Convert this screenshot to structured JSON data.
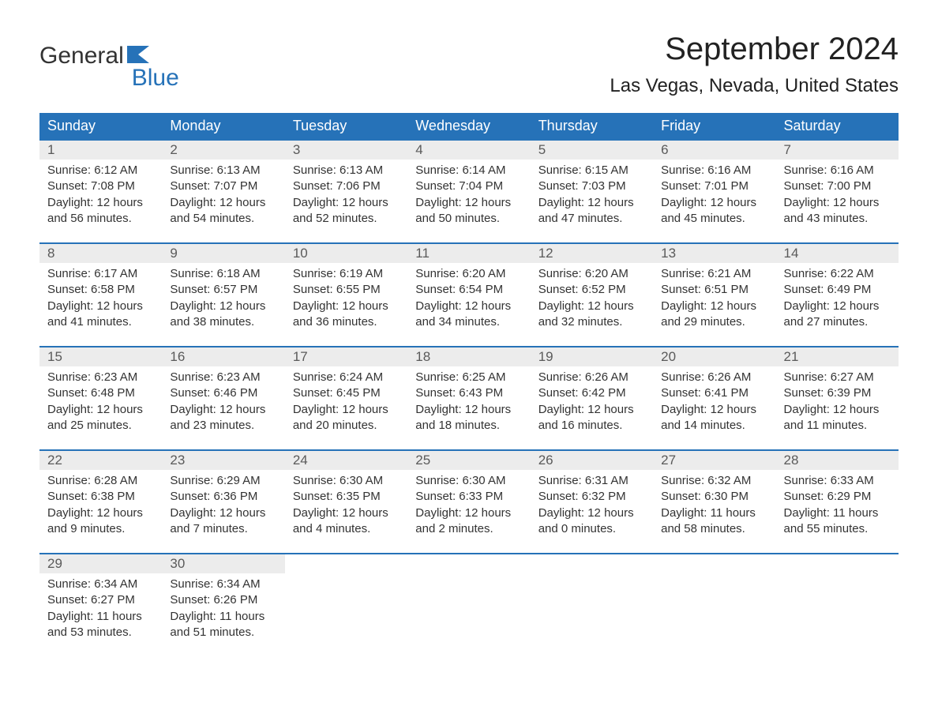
{
  "logo": {
    "part1": "General",
    "part2": "Blue"
  },
  "title": "September 2024",
  "location": "Las Vegas, Nevada, United States",
  "colors": {
    "brand_blue": "#2672b8",
    "header_bg": "#2672b8",
    "header_text": "#ffffff",
    "daynum_bg": "#ececec",
    "daynum_text": "#5a5a5a",
    "body_text": "#333333",
    "page_bg": "#ffffff"
  },
  "typography": {
    "title_fontsize": 40,
    "location_fontsize": 24,
    "header_fontsize": 18,
    "daynum_fontsize": 17,
    "cell_fontsize": 15,
    "logo_fontsize": 30
  },
  "weekdays": [
    "Sunday",
    "Monday",
    "Tuesday",
    "Wednesday",
    "Thursday",
    "Friday",
    "Saturday"
  ],
  "weeks": [
    [
      {
        "n": "1",
        "sr": "Sunrise: 6:12 AM",
        "ss": "Sunset: 7:08 PM",
        "d1": "Daylight: 12 hours",
        "d2": "and 56 minutes."
      },
      {
        "n": "2",
        "sr": "Sunrise: 6:13 AM",
        "ss": "Sunset: 7:07 PM",
        "d1": "Daylight: 12 hours",
        "d2": "and 54 minutes."
      },
      {
        "n": "3",
        "sr": "Sunrise: 6:13 AM",
        "ss": "Sunset: 7:06 PM",
        "d1": "Daylight: 12 hours",
        "d2": "and 52 minutes."
      },
      {
        "n": "4",
        "sr": "Sunrise: 6:14 AM",
        "ss": "Sunset: 7:04 PM",
        "d1": "Daylight: 12 hours",
        "d2": "and 50 minutes."
      },
      {
        "n": "5",
        "sr": "Sunrise: 6:15 AM",
        "ss": "Sunset: 7:03 PM",
        "d1": "Daylight: 12 hours",
        "d2": "and 47 minutes."
      },
      {
        "n": "6",
        "sr": "Sunrise: 6:16 AM",
        "ss": "Sunset: 7:01 PM",
        "d1": "Daylight: 12 hours",
        "d2": "and 45 minutes."
      },
      {
        "n": "7",
        "sr": "Sunrise: 6:16 AM",
        "ss": "Sunset: 7:00 PM",
        "d1": "Daylight: 12 hours",
        "d2": "and 43 minutes."
      }
    ],
    [
      {
        "n": "8",
        "sr": "Sunrise: 6:17 AM",
        "ss": "Sunset: 6:58 PM",
        "d1": "Daylight: 12 hours",
        "d2": "and 41 minutes."
      },
      {
        "n": "9",
        "sr": "Sunrise: 6:18 AM",
        "ss": "Sunset: 6:57 PM",
        "d1": "Daylight: 12 hours",
        "d2": "and 38 minutes."
      },
      {
        "n": "10",
        "sr": "Sunrise: 6:19 AM",
        "ss": "Sunset: 6:55 PM",
        "d1": "Daylight: 12 hours",
        "d2": "and 36 minutes."
      },
      {
        "n": "11",
        "sr": "Sunrise: 6:20 AM",
        "ss": "Sunset: 6:54 PM",
        "d1": "Daylight: 12 hours",
        "d2": "and 34 minutes."
      },
      {
        "n": "12",
        "sr": "Sunrise: 6:20 AM",
        "ss": "Sunset: 6:52 PM",
        "d1": "Daylight: 12 hours",
        "d2": "and 32 minutes."
      },
      {
        "n": "13",
        "sr": "Sunrise: 6:21 AM",
        "ss": "Sunset: 6:51 PM",
        "d1": "Daylight: 12 hours",
        "d2": "and 29 minutes."
      },
      {
        "n": "14",
        "sr": "Sunrise: 6:22 AM",
        "ss": "Sunset: 6:49 PM",
        "d1": "Daylight: 12 hours",
        "d2": "and 27 minutes."
      }
    ],
    [
      {
        "n": "15",
        "sr": "Sunrise: 6:23 AM",
        "ss": "Sunset: 6:48 PM",
        "d1": "Daylight: 12 hours",
        "d2": "and 25 minutes."
      },
      {
        "n": "16",
        "sr": "Sunrise: 6:23 AM",
        "ss": "Sunset: 6:46 PM",
        "d1": "Daylight: 12 hours",
        "d2": "and 23 minutes."
      },
      {
        "n": "17",
        "sr": "Sunrise: 6:24 AM",
        "ss": "Sunset: 6:45 PM",
        "d1": "Daylight: 12 hours",
        "d2": "and 20 minutes."
      },
      {
        "n": "18",
        "sr": "Sunrise: 6:25 AM",
        "ss": "Sunset: 6:43 PM",
        "d1": "Daylight: 12 hours",
        "d2": "and 18 minutes."
      },
      {
        "n": "19",
        "sr": "Sunrise: 6:26 AM",
        "ss": "Sunset: 6:42 PM",
        "d1": "Daylight: 12 hours",
        "d2": "and 16 minutes."
      },
      {
        "n": "20",
        "sr": "Sunrise: 6:26 AM",
        "ss": "Sunset: 6:41 PM",
        "d1": "Daylight: 12 hours",
        "d2": "and 14 minutes."
      },
      {
        "n": "21",
        "sr": "Sunrise: 6:27 AM",
        "ss": "Sunset: 6:39 PM",
        "d1": "Daylight: 12 hours",
        "d2": "and 11 minutes."
      }
    ],
    [
      {
        "n": "22",
        "sr": "Sunrise: 6:28 AM",
        "ss": "Sunset: 6:38 PM",
        "d1": "Daylight: 12 hours",
        "d2": "and 9 minutes."
      },
      {
        "n": "23",
        "sr": "Sunrise: 6:29 AM",
        "ss": "Sunset: 6:36 PM",
        "d1": "Daylight: 12 hours",
        "d2": "and 7 minutes."
      },
      {
        "n": "24",
        "sr": "Sunrise: 6:30 AM",
        "ss": "Sunset: 6:35 PM",
        "d1": "Daylight: 12 hours",
        "d2": "and 4 minutes."
      },
      {
        "n": "25",
        "sr": "Sunrise: 6:30 AM",
        "ss": "Sunset: 6:33 PM",
        "d1": "Daylight: 12 hours",
        "d2": "and 2 minutes."
      },
      {
        "n": "26",
        "sr": "Sunrise: 6:31 AM",
        "ss": "Sunset: 6:32 PM",
        "d1": "Daylight: 12 hours",
        "d2": "and 0 minutes."
      },
      {
        "n": "27",
        "sr": "Sunrise: 6:32 AM",
        "ss": "Sunset: 6:30 PM",
        "d1": "Daylight: 11 hours",
        "d2": "and 58 minutes."
      },
      {
        "n": "28",
        "sr": "Sunrise: 6:33 AM",
        "ss": "Sunset: 6:29 PM",
        "d1": "Daylight: 11 hours",
        "d2": "and 55 minutes."
      }
    ],
    [
      {
        "n": "29",
        "sr": "Sunrise: 6:34 AM",
        "ss": "Sunset: 6:27 PM",
        "d1": "Daylight: 11 hours",
        "d2": "and 53 minutes."
      },
      {
        "n": "30",
        "sr": "Sunrise: 6:34 AM",
        "ss": "Sunset: 6:26 PM",
        "d1": "Daylight: 11 hours",
        "d2": "and 51 minutes."
      },
      null,
      null,
      null,
      null,
      null
    ]
  ]
}
